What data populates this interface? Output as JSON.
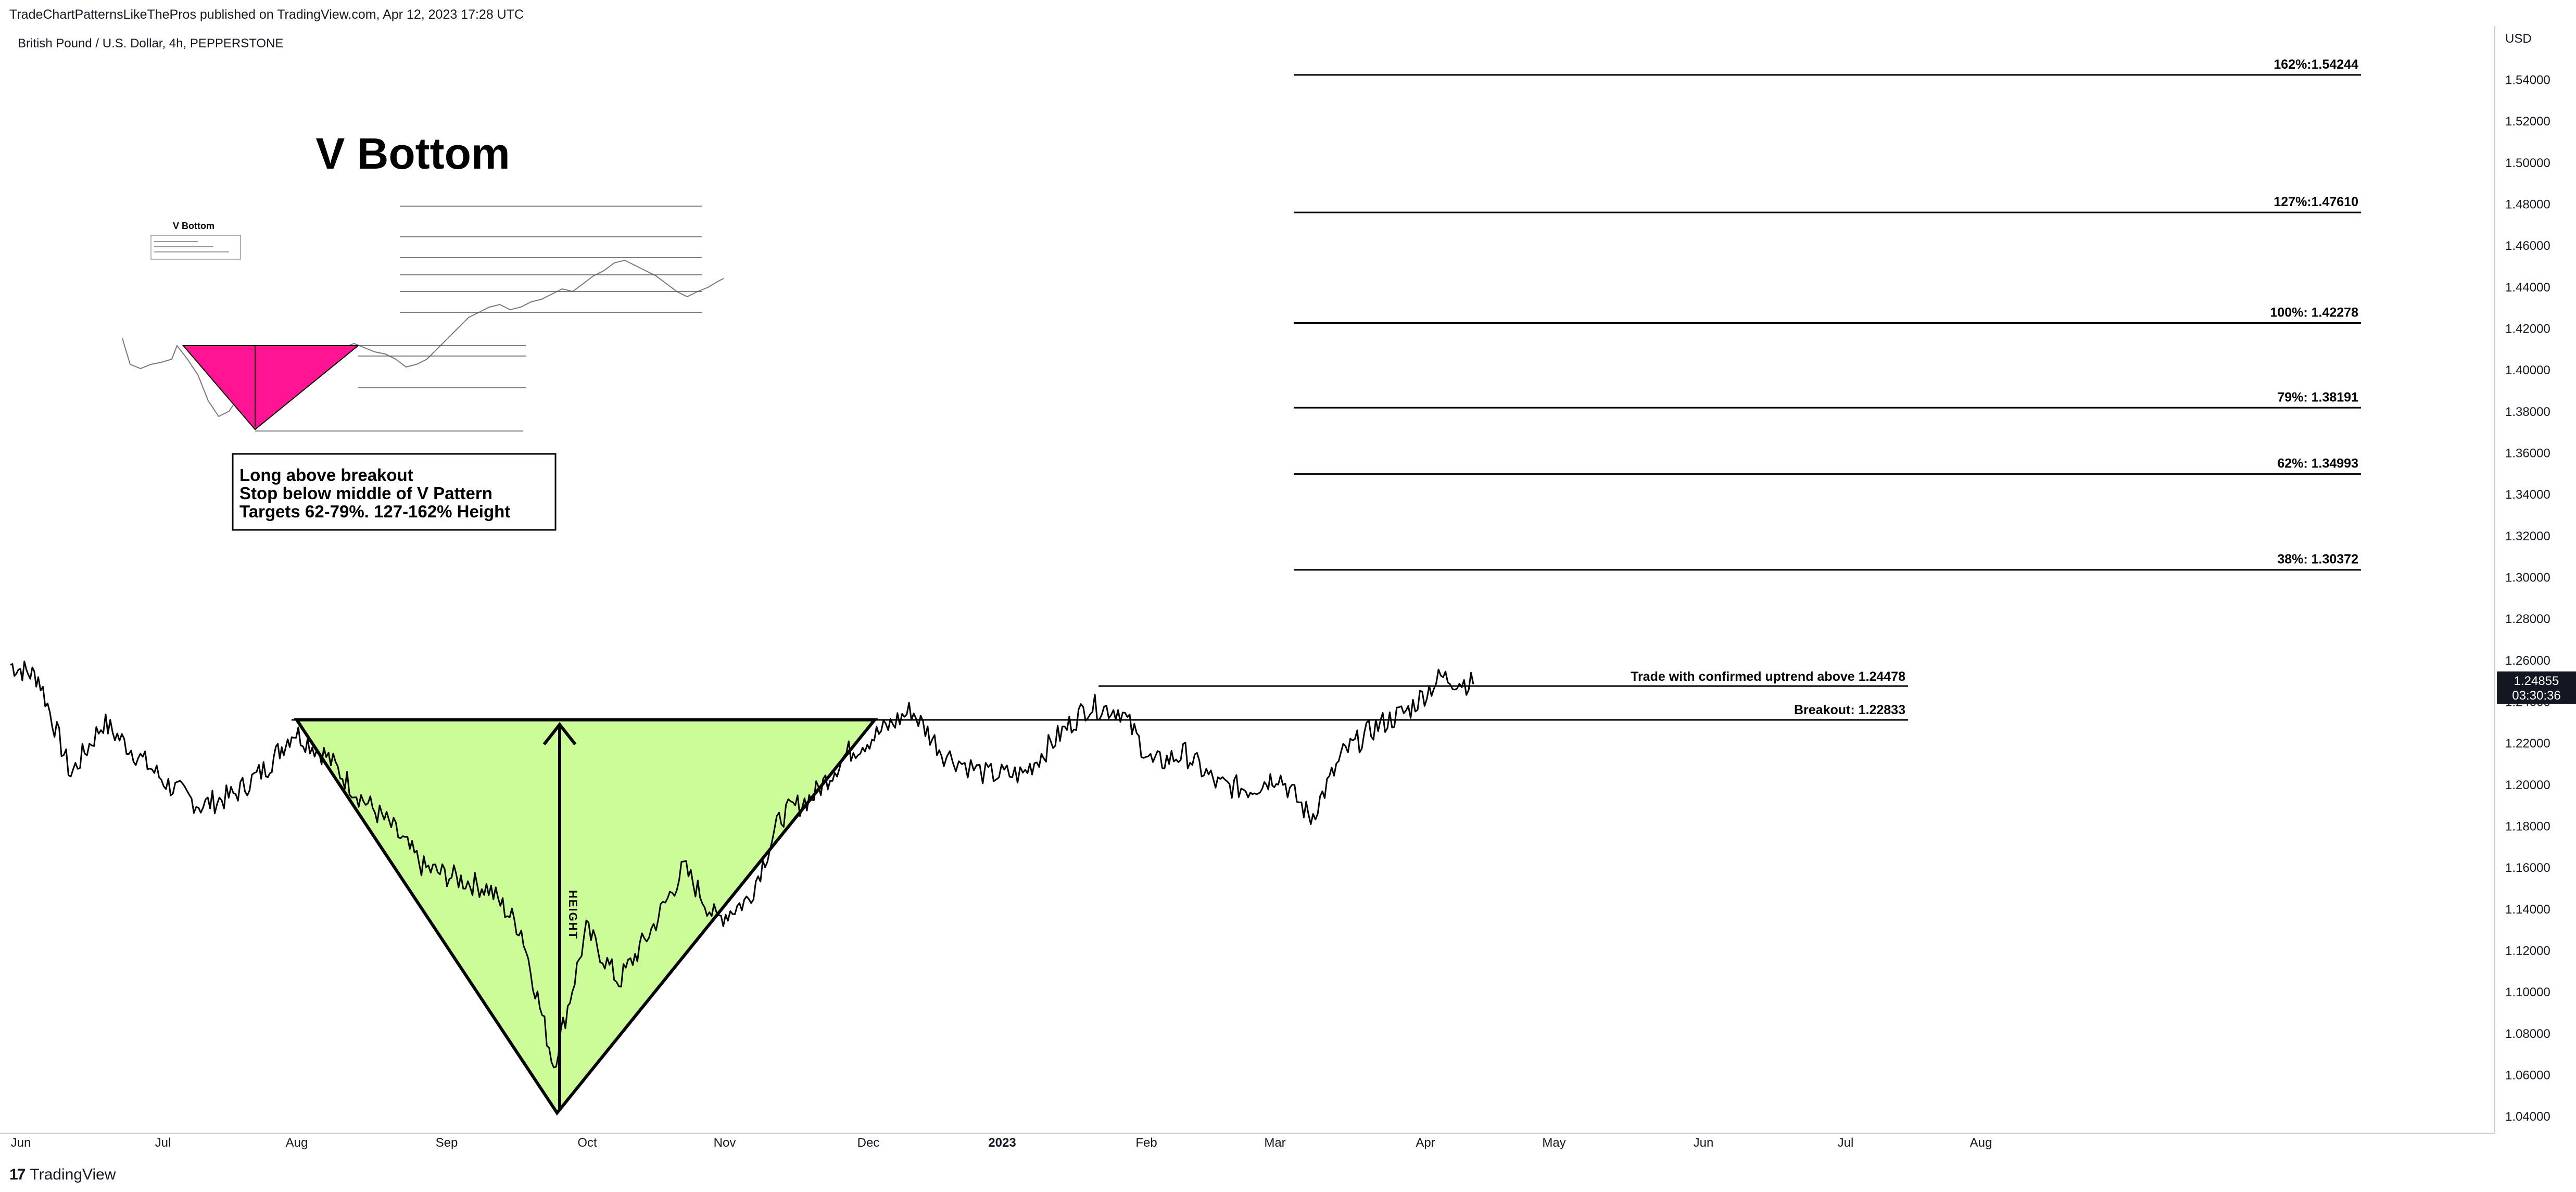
{
  "header": {
    "published": "TradeChartPatternsLikeThePros published on TradingView.com, Apr 12, 2023 17:28 UTC",
    "symbol": "British Pound / U.S. Dollar, 4h, PEPPERSTONE"
  },
  "footer": {
    "logo_glyph": "17",
    "brand": "TradingView"
  },
  "chart_data": {
    "type": "line",
    "title": "V Bottom",
    "currency_label": "USD",
    "x_labels": [
      "Jun",
      "Jul",
      "Aug",
      "Sep",
      "Oct",
      "Nov",
      "Dec",
      "2023",
      "Feb",
      "Mar",
      "Apr",
      "May",
      "Jun",
      "Jul",
      "Aug"
    ],
    "y_ticks": [
      "1.54000",
      "1.52000",
      "1.50000",
      "1.48000",
      "1.46000",
      "1.44000",
      "1.42000",
      "1.40000",
      "1.38000",
      "1.36000",
      "1.34000",
      "1.32000",
      "1.30000",
      "1.28000",
      "1.26000",
      "1.24000",
      "1.22000",
      "1.20000",
      "1.18000",
      "1.16000",
      "1.14000",
      "1.12000",
      "1.10000",
      "1.08000",
      "1.06000",
      "1.04000"
    ],
    "ylim": [
      1.032,
      1.566
    ],
    "last_price": {
      "value": "1.24855",
      "countdown": "03:30:36"
    },
    "price_series": [
      [
        "2022-06-01",
        1.258
      ],
      [
        "2022-06-07",
        1.252
      ],
      [
        "2022-06-14",
        1.205
      ],
      [
        "2022-06-21",
        1.23
      ],
      [
        "2022-06-28",
        1.215
      ],
      [
        "2022-07-05",
        1.2
      ],
      [
        "2022-07-12",
        1.19
      ],
      [
        "2022-07-19",
        1.195
      ],
      [
        "2022-07-26",
        1.208
      ],
      [
        "2022-08-01",
        1.226
      ],
      [
        "2022-08-08",
        1.214
      ],
      [
        "2022-08-15",
        1.195
      ],
      [
        "2022-08-22",
        1.18
      ],
      [
        "2022-08-29",
        1.16
      ],
      [
        "2022-09-05",
        1.155
      ],
      [
        "2022-09-12",
        1.15
      ],
      [
        "2022-09-19",
        1.13
      ],
      [
        "2022-09-26",
        1.065
      ],
      [
        "2022-10-03",
        1.13
      ],
      [
        "2022-10-10",
        1.105
      ],
      [
        "2022-10-17",
        1.13
      ],
      [
        "2022-10-24",
        1.16
      ],
      [
        "2022-10-31",
        1.135
      ],
      [
        "2022-11-07",
        1.145
      ],
      [
        "2022-11-14",
        1.185
      ],
      [
        "2022-11-21",
        1.195
      ],
      [
        "2022-11-28",
        1.215
      ],
      [
        "2022-12-05",
        1.225
      ],
      [
        "2022-12-12",
        1.236
      ],
      [
        "2022-12-19",
        1.215
      ],
      [
        "2022-12-28",
        1.205
      ],
      [
        "2023-01-05",
        1.205
      ],
      [
        "2023-01-12",
        1.222
      ],
      [
        "2023-01-19",
        1.238
      ],
      [
        "2023-01-26",
        1.236
      ],
      [
        "2023-02-02",
        1.21
      ],
      [
        "2023-02-09",
        1.215
      ],
      [
        "2023-02-16",
        1.2
      ],
      [
        "2023-02-23",
        1.198
      ],
      [
        "2023-03-01",
        1.205
      ],
      [
        "2023-03-08",
        1.184
      ],
      [
        "2023-03-15",
        1.215
      ],
      [
        "2023-03-22",
        1.228
      ],
      [
        "2023-03-29",
        1.236
      ],
      [
        "2023-04-05",
        1.252
      ],
      [
        "2023-04-12",
        1.24855
      ]
    ],
    "levels": [
      {
        "label": "162%:1.54244",
        "value": 1.54244
      },
      {
        "label": "127%:1.47610",
        "value": 1.4761
      },
      {
        "label": "100%: 1.42278",
        "value": 1.42278
      },
      {
        "label": "79%: 1.38191",
        "value": 1.38191
      },
      {
        "label": "62%: 1.34993",
        "value": 1.34993
      },
      {
        "label": "38%: 1.30372",
        "value": 1.30372
      }
    ],
    "uptrend_label": "Trade with confirmed uptrend above 1.24478",
    "breakout_label": "Breakout: 1.22833",
    "pattern": {
      "type": "v-bottom",
      "top_level": 1.22833,
      "low_level": 1.035,
      "color": "#ccfc98",
      "height_label": "HEIGHT"
    },
    "inset": {
      "title": "V Bottom",
      "triangle_color": "#ff1493",
      "note_lines": [
        "Long above breakout",
        "Stop below middle of V Pattern",
        "Targets 62-79%. 127-162% Height"
      ]
    },
    "grid": false
  }
}
